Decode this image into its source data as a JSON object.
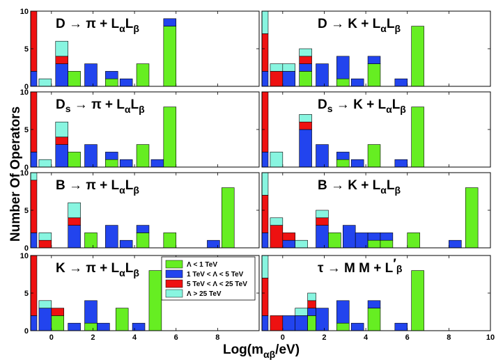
{
  "chart_data": {
    "type": "bar",
    "stacked": true,
    "ylabel": "Number Of Operators",
    "xlabel": {
      "base": "Log(m",
      "sub": "αβ",
      "tail": "/eV)"
    },
    "xlim": [
      -1,
      10
    ],
    "ylim": [
      0,
      10
    ],
    "xticks": [
      0,
      2,
      4,
      6,
      8,
      10
    ],
    "yticks": [
      0,
      5,
      10
    ],
    "grid": false,
    "legend_placement": "bottom-center (inside K panel)",
    "legend": [
      {
        "key": "green",
        "label": "Λ < 1 TeV",
        "color": "#66ee22"
      },
      {
        "key": "blue",
        "label": "1 TeV < Λ < 5 TeV",
        "color": "#2244ee"
      },
      {
        "key": "red",
        "label": "5 TeV < Λ < 25 TeV",
        "color": "#ee1111"
      },
      {
        "key": "cyan",
        "label": "Λ > 25 TeV",
        "color": "#88f5e0"
      }
    ],
    "panels": [
      {
        "id": "D_pi",
        "title": {
          "main": "D → π + L",
          "s1": "α",
          "mid": "L",
          "s2": "β"
        },
        "bars": [
          {
            "x0": -1,
            "x1": -0.7,
            "green": 0,
            "blue": 2,
            "red": 8,
            "cyan": 0
          },
          {
            "x0": -0.6,
            "x1": 0.0,
            "green": 0,
            "blue": 0,
            "red": 0,
            "cyan": 1
          },
          {
            "x0": 0.2,
            "x1": 0.8,
            "green": 0,
            "blue": 3,
            "red": 1,
            "cyan": 2
          },
          {
            "x0": 0.8,
            "x1": 1.4,
            "green": 2,
            "blue": 0,
            "red": 0,
            "cyan": 0
          },
          {
            "x0": 1.6,
            "x1": 2.2,
            "green": 0,
            "blue": 3,
            "red": 0,
            "cyan": 0
          },
          {
            "x0": 2.6,
            "x1": 3.2,
            "green": 1,
            "blue": 1,
            "red": 0,
            "cyan": 0
          },
          {
            "x0": 3.3,
            "x1": 3.9,
            "green": 0,
            "blue": 1,
            "red": 0,
            "cyan": 0
          },
          {
            "x0": 4.1,
            "x1": 4.7,
            "green": 3,
            "blue": 0,
            "red": 0,
            "cyan": 0
          },
          {
            "x0": 5.4,
            "x1": 6.0,
            "green": 8,
            "blue": 1,
            "red": 0,
            "cyan": 0
          }
        ]
      },
      {
        "id": "D_K",
        "title": {
          "main": "D → K + L",
          "s1": "α",
          "mid": "L",
          "s2": "β"
        },
        "bars": [
          {
            "x0": -1,
            "x1": -0.7,
            "green": 0,
            "blue": 2,
            "red": 5,
            "cyan": 3
          },
          {
            "x0": -0.6,
            "x1": 0.0,
            "green": 0,
            "blue": 0,
            "red": 2,
            "cyan": 1
          },
          {
            "x0": 0.0,
            "x1": 0.6,
            "green": 0,
            "blue": 2,
            "red": 0,
            "cyan": 1
          },
          {
            "x0": 0.8,
            "x1": 1.4,
            "green": 2,
            "blue": 1,
            "red": 1,
            "cyan": 1
          },
          {
            "x0": 1.6,
            "x1": 2.2,
            "green": 0,
            "blue": 3,
            "red": 0,
            "cyan": 0
          },
          {
            "x0": 2.6,
            "x1": 3.2,
            "green": 1,
            "blue": 3,
            "red": 0,
            "cyan": 0
          },
          {
            "x0": 3.3,
            "x1": 3.9,
            "green": 0,
            "blue": 1,
            "red": 0,
            "cyan": 0
          },
          {
            "x0": 4.1,
            "x1": 4.7,
            "green": 3,
            "blue": 1,
            "red": 0,
            "cyan": 0
          },
          {
            "x0": 5.4,
            "x1": 6.0,
            "green": 0,
            "blue": 1,
            "red": 0,
            "cyan": 0
          },
          {
            "x0": 6.2,
            "x1": 6.8,
            "green": 8,
            "blue": 0,
            "red": 0,
            "cyan": 0
          }
        ]
      },
      {
        "id": "Ds_pi",
        "title": {
          "main": "D",
          "msub": "s",
          "main2": " → π + L",
          "s1": "α",
          "mid": "L",
          "s2": "β"
        },
        "bars": [
          {
            "x0": -1,
            "x1": -0.7,
            "green": 0,
            "blue": 2,
            "red": 8,
            "cyan": 0
          },
          {
            "x0": -0.6,
            "x1": 0.0,
            "green": 0,
            "blue": 0,
            "red": 0,
            "cyan": 1
          },
          {
            "x0": 0.2,
            "x1": 0.8,
            "green": 0,
            "blue": 3,
            "red": 1,
            "cyan": 2
          },
          {
            "x0": 0.8,
            "x1": 1.4,
            "green": 2,
            "blue": 0,
            "red": 0,
            "cyan": 0
          },
          {
            "x0": 1.6,
            "x1": 2.2,
            "green": 0,
            "blue": 3,
            "red": 0,
            "cyan": 0
          },
          {
            "x0": 2.6,
            "x1": 3.2,
            "green": 1,
            "blue": 1,
            "red": 0,
            "cyan": 0
          },
          {
            "x0": 3.3,
            "x1": 3.9,
            "green": 0,
            "blue": 1,
            "red": 0,
            "cyan": 0
          },
          {
            "x0": 4.1,
            "x1": 4.7,
            "green": 3,
            "blue": 0,
            "red": 0,
            "cyan": 0
          },
          {
            "x0": 4.8,
            "x1": 5.4,
            "green": 0,
            "blue": 1,
            "red": 0,
            "cyan": 0
          },
          {
            "x0": 5.4,
            "x1": 6.0,
            "green": 8,
            "blue": 0,
            "red": 0,
            "cyan": 0
          }
        ]
      },
      {
        "id": "Ds_K",
        "title": {
          "main": "D",
          "msub": "s",
          "main2": " → K + L",
          "s1": "α",
          "mid": "L",
          "s2": "β"
        },
        "bars": [
          {
            "x0": -1,
            "x1": -0.7,
            "green": 0,
            "blue": 2,
            "red": 8,
            "cyan": 0
          },
          {
            "x0": -0.6,
            "x1": 0.0,
            "green": 0,
            "blue": 0,
            "red": 0,
            "cyan": 2
          },
          {
            "x0": 0.8,
            "x1": 1.4,
            "green": 0,
            "blue": 5,
            "red": 1,
            "cyan": 1
          },
          {
            "x0": 1.6,
            "x1": 2.2,
            "green": 0,
            "blue": 3,
            "red": 0,
            "cyan": 0
          },
          {
            "x0": 2.6,
            "x1": 3.2,
            "green": 1,
            "blue": 1,
            "red": 0,
            "cyan": 0
          },
          {
            "x0": 3.3,
            "x1": 3.9,
            "green": 0,
            "blue": 1,
            "red": 0,
            "cyan": 0
          },
          {
            "x0": 4.1,
            "x1": 4.7,
            "green": 3,
            "blue": 0,
            "red": 0,
            "cyan": 0
          },
          {
            "x0": 5.4,
            "x1": 6.0,
            "green": 0,
            "blue": 1,
            "red": 0,
            "cyan": 0
          },
          {
            "x0": 6.2,
            "x1": 6.8,
            "green": 8,
            "blue": 0,
            "red": 0,
            "cyan": 0
          }
        ]
      },
      {
        "id": "B_pi",
        "title": {
          "main": "B → π + L",
          "s1": "α",
          "mid": "L",
          "s2": "β"
        },
        "bars": [
          {
            "x0": -1,
            "x1": -0.7,
            "green": 0,
            "blue": 2,
            "red": 7,
            "cyan": 1
          },
          {
            "x0": -0.6,
            "x1": 0.0,
            "green": 0,
            "blue": 0,
            "red": 1,
            "cyan": 1
          },
          {
            "x0": 0.8,
            "x1": 1.4,
            "green": 0,
            "blue": 3,
            "red": 1,
            "cyan": 2
          },
          {
            "x0": 1.6,
            "x1": 2.2,
            "green": 2,
            "blue": 0,
            "red": 0,
            "cyan": 0
          },
          {
            "x0": 2.6,
            "x1": 3.2,
            "green": 0,
            "blue": 3,
            "red": 0,
            "cyan": 0
          },
          {
            "x0": 3.3,
            "x1": 3.9,
            "green": 0,
            "blue": 1,
            "red": 0,
            "cyan": 0
          },
          {
            "x0": 4.1,
            "x1": 4.7,
            "green": 2,
            "blue": 1,
            "red": 0,
            "cyan": 0
          },
          {
            "x0": 5.4,
            "x1": 6.0,
            "green": 2,
            "blue": 0,
            "red": 0,
            "cyan": 0
          },
          {
            "x0": 7.5,
            "x1": 8.1,
            "green": 0,
            "blue": 1,
            "red": 0,
            "cyan": 0
          },
          {
            "x0": 8.2,
            "x1": 8.8,
            "green": 8,
            "blue": 0,
            "red": 0,
            "cyan": 0
          }
        ]
      },
      {
        "id": "B_K",
        "title": {
          "main": "B → K + L",
          "s1": "α",
          "mid": "L",
          "s2": "β"
        },
        "bars": [
          {
            "x0": -1,
            "x1": -0.7,
            "green": 0,
            "blue": 2,
            "red": 5,
            "cyan": 3
          },
          {
            "x0": -0.6,
            "x1": 0.0,
            "green": 0,
            "blue": 0,
            "red": 3,
            "cyan": 1
          },
          {
            "x0": 0.0,
            "x1": 0.6,
            "green": 0,
            "blue": 1,
            "red": 1,
            "cyan": 0
          },
          {
            "x0": 0.6,
            "x1": 1.2,
            "green": 0,
            "blue": 0,
            "red": 0,
            "cyan": 1
          },
          {
            "x0": 1.6,
            "x1": 2.2,
            "green": 0,
            "blue": 3,
            "red": 1,
            "cyan": 1
          },
          {
            "x0": 2.2,
            "x1": 2.8,
            "green": 2,
            "blue": 0,
            "red": 0,
            "cyan": 0
          },
          {
            "x0": 2.9,
            "x1": 3.5,
            "green": 0,
            "blue": 3,
            "red": 0,
            "cyan": 0
          },
          {
            "x0": 3.5,
            "x1": 4.1,
            "green": 0,
            "blue": 2,
            "red": 0,
            "cyan": 0
          },
          {
            "x0": 4.1,
            "x1": 4.7,
            "green": 1,
            "blue": 1,
            "red": 0,
            "cyan": 0
          },
          {
            "x0": 4.7,
            "x1": 5.3,
            "green": 1,
            "blue": 1,
            "red": 0,
            "cyan": 0
          },
          {
            "x0": 6.0,
            "x1": 6.6,
            "green": 2,
            "blue": 0,
            "red": 0,
            "cyan": 0
          },
          {
            "x0": 8.0,
            "x1": 8.6,
            "green": 0,
            "blue": 1,
            "red": 0,
            "cyan": 0
          },
          {
            "x0": 8.8,
            "x1": 9.4,
            "green": 8,
            "blue": 0,
            "red": 0,
            "cyan": 0
          }
        ]
      },
      {
        "id": "K_pi",
        "title": {
          "main": "K → π + L",
          "s1": "α",
          "mid": "L",
          "s2": "β"
        },
        "bars": [
          {
            "x0": -1,
            "x1": -0.7,
            "green": 0,
            "blue": 2,
            "red": 8,
            "cyan": 0
          },
          {
            "x0": -0.6,
            "x1": 0.0,
            "green": 0,
            "blue": 3,
            "red": 0,
            "cyan": 1
          },
          {
            "x0": 0.0,
            "x1": 0.6,
            "green": 2,
            "blue": 0,
            "red": 1,
            "cyan": 0
          },
          {
            "x0": 0.8,
            "x1": 1.4,
            "green": 0,
            "blue": 1,
            "red": 0,
            "cyan": 0
          },
          {
            "x0": 1.6,
            "x1": 2.2,
            "green": 1,
            "blue": 3,
            "red": 0,
            "cyan": 0
          },
          {
            "x0": 2.2,
            "x1": 2.8,
            "green": 0,
            "blue": 1,
            "red": 0,
            "cyan": 0
          },
          {
            "x0": 3.1,
            "x1": 3.7,
            "green": 3,
            "blue": 0,
            "red": 0,
            "cyan": 0
          },
          {
            "x0": 3.9,
            "x1": 4.5,
            "green": 0,
            "blue": 1,
            "red": 0,
            "cyan": 0
          },
          {
            "x0": 4.7,
            "x1": 5.3,
            "green": 8,
            "blue": 0,
            "red": 0,
            "cyan": 0
          }
        ]
      },
      {
        "id": "tau_MM",
        "title": {
          "main": "τ → M M",
          "prime": "′",
          "main2": " + L",
          "s2": "β"
        },
        "bars": [
          {
            "x0": -1,
            "x1": -0.7,
            "green": 0,
            "blue": 2,
            "red": 5,
            "cyan": 3
          },
          {
            "x0": -0.6,
            "x1": 0.0,
            "green": 0,
            "blue": 0,
            "red": 2,
            "cyan": 0
          },
          {
            "x0": 0.0,
            "x1": 0.6,
            "green": 0,
            "blue": 2,
            "red": 0,
            "cyan": 0
          },
          {
            "x0": 0.6,
            "x1": 1.2,
            "green": 0,
            "blue": 2,
            "red": 0,
            "cyan": 1
          },
          {
            "x0": 1.2,
            "x1": 1.6,
            "green": 2,
            "blue": 1,
            "red": 1,
            "cyan": 1
          },
          {
            "x0": 1.6,
            "x1": 2.2,
            "green": 0,
            "blue": 3,
            "red": 0,
            "cyan": 0
          },
          {
            "x0": 2.6,
            "x1": 3.2,
            "green": 1,
            "blue": 3,
            "red": 0,
            "cyan": 0
          },
          {
            "x0": 3.3,
            "x1": 3.9,
            "green": 0,
            "blue": 1,
            "red": 0,
            "cyan": 0
          },
          {
            "x0": 4.1,
            "x1": 4.7,
            "green": 3,
            "blue": 1,
            "red": 0,
            "cyan": 0
          },
          {
            "x0": 5.4,
            "x1": 6.0,
            "green": 0,
            "blue": 1,
            "red": 0,
            "cyan": 0
          },
          {
            "x0": 6.2,
            "x1": 6.8,
            "green": 8,
            "blue": 0,
            "red": 0,
            "cyan": 0
          }
        ]
      }
    ]
  }
}
